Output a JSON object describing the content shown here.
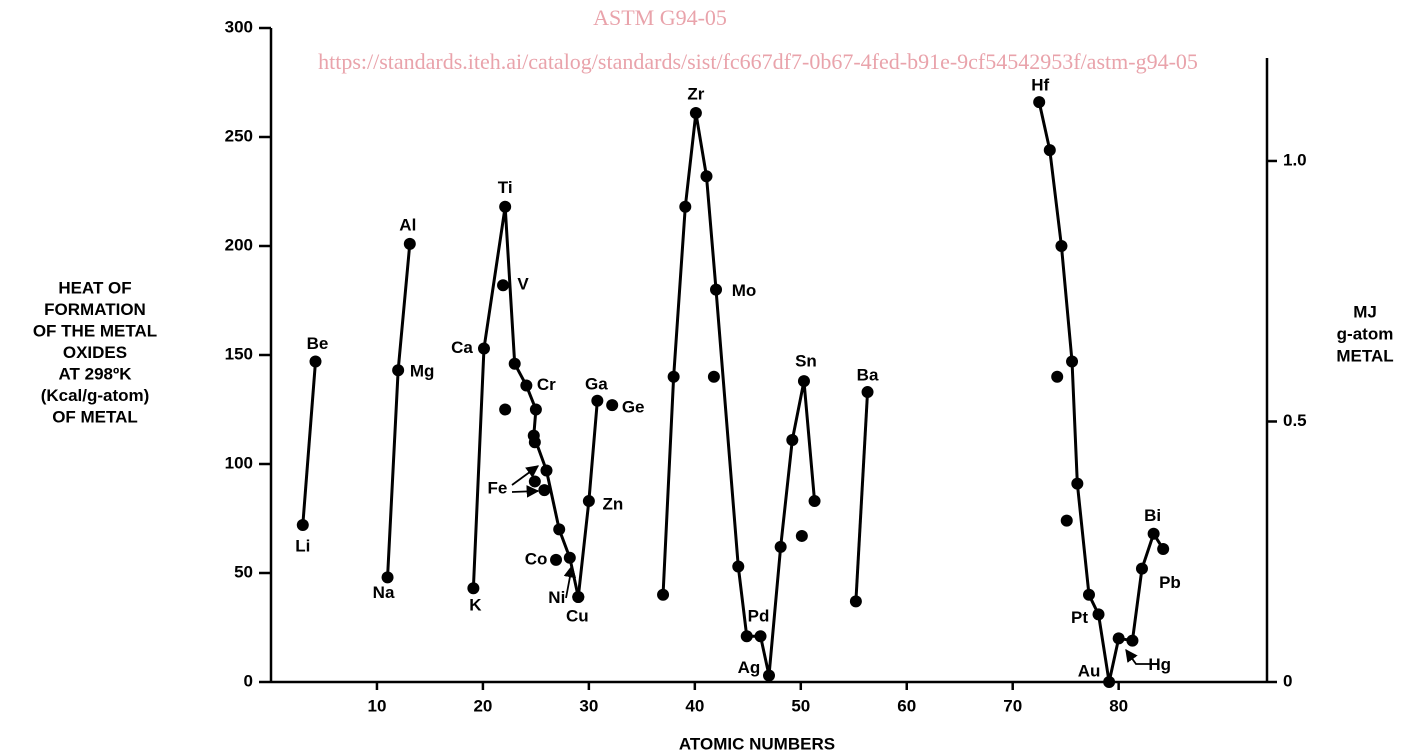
{
  "chart_data": {
    "type": "line",
    "watermark": {
      "title": "ASTM G94-05",
      "url": "https://standards.iteh.ai/catalog/standards/sist/fc667df7-0b67-4fed-b91e-9cf54542953f/astm-g94-05"
    },
    "x_label": "ATOMIC NUMBERS",
    "y_label": [
      "HEAT OF",
      "FORMATION",
      "OF THE METAL",
      "OXIDES",
      "AT 298ºK",
      "(Kcal/g-atom)",
      "OF METAL"
    ],
    "y2_label": [
      "MJ",
      "g-atom",
      "METAL"
    ],
    "xlim": [
      0,
      94
    ],
    "xticks": [
      10,
      20,
      30,
      40,
      50,
      60,
      70,
      80
    ],
    "ylim": [
      0,
      300
    ],
    "yticks": [
      0,
      50,
      100,
      150,
      200,
      250,
      300
    ],
    "y2lim": [
      0,
      1.2552
    ],
    "y2ticks": [
      0,
      0.5,
      {
        "value": 1,
        "label": "1.0"
      }
    ],
    "color": "#000000",
    "series": [
      {
        "line": true,
        "x": [
          3.0,
          4.2
        ],
        "values": [
          72,
          147
        ],
        "labels": [
          "Li",
          "Be"
        ]
      },
      {
        "line": true,
        "x": [
          11.0,
          12.0,
          13.1
        ],
        "values": [
          48,
          143,
          201
        ],
        "labels": [
          "Na",
          "Mg",
          "Al"
        ]
      },
      {
        "line": true,
        "x": [
          19.1,
          20.1,
          22.1,
          23.0,
          24.1,
          25.0,
          24.8,
          26.0,
          27.2,
          28.2,
          29.0
        ],
        "values": [
          43,
          153,
          218,
          146,
          136,
          125,
          113,
          97,
          70,
          57,
          39
        ],
        "labels": [
          "K",
          "Ca",
          "Ti",
          null,
          "Cr",
          null,
          null,
          null,
          null,
          "Ni",
          "Cu"
        ]
      },
      {
        "line": true,
        "x": [
          29.0,
          30.0,
          30.8
        ],
        "values": [
          39,
          83,
          129
        ],
        "labels": [
          null,
          "Zn",
          "Ga"
        ]
      },
      {
        "line": true,
        "x": [
          37.0,
          38.0,
          39.1,
          40.1,
          41.1,
          42.0,
          44.1,
          44.9,
          46.2,
          47.0,
          48.1,
          49.2,
          50.3,
          51.3
        ],
        "values": [
          40,
          140,
          218,
          261,
          232,
          180,
          53,
          21,
          21,
          3,
          62,
          111,
          138,
          83
        ],
        "labels": [
          null,
          null,
          null,
          "Zr",
          null,
          "Mo",
          null,
          null,
          "Pd",
          "Ag",
          null,
          null,
          "Sn",
          null
        ]
      },
      {
        "line": true,
        "x": [
          55.2,
          56.3
        ],
        "values": [
          37,
          133
        ],
        "labels": [
          null,
          "Ba"
        ]
      },
      {
        "line": true,
        "x": [
          72.5,
          73.5,
          74.6,
          75.6,
          76.1,
          77.2,
          78.1,
          79.1,
          80.0,
          81.3,
          82.2,
          83.3,
          84.2
        ],
        "values": [
          266,
          244,
          200,
          147,
          91,
          40,
          31,
          0,
          20,
          19,
          52,
          68,
          61
        ],
        "labels": [
          "Hf",
          null,
          null,
          null,
          null,
          null,
          "Pt",
          "Au",
          "Hg",
          null,
          "Pb",
          "Bi",
          null
        ]
      },
      {
        "line": false,
        "x": [
          21.9,
          22.1,
          24.9,
          24.9,
          25.8,
          26.9,
          32.2,
          41.8,
          50.1,
          74.2,
          75.1
        ],
        "values": [
          182,
          125,
          110,
          92,
          88,
          56,
          127,
          140,
          67,
          140,
          74
        ],
        "labels": [
          "V",
          null,
          null,
          null,
          "Fe",
          "Co",
          "Ge",
          null,
          null,
          null,
          null
        ]
      }
    ]
  }
}
